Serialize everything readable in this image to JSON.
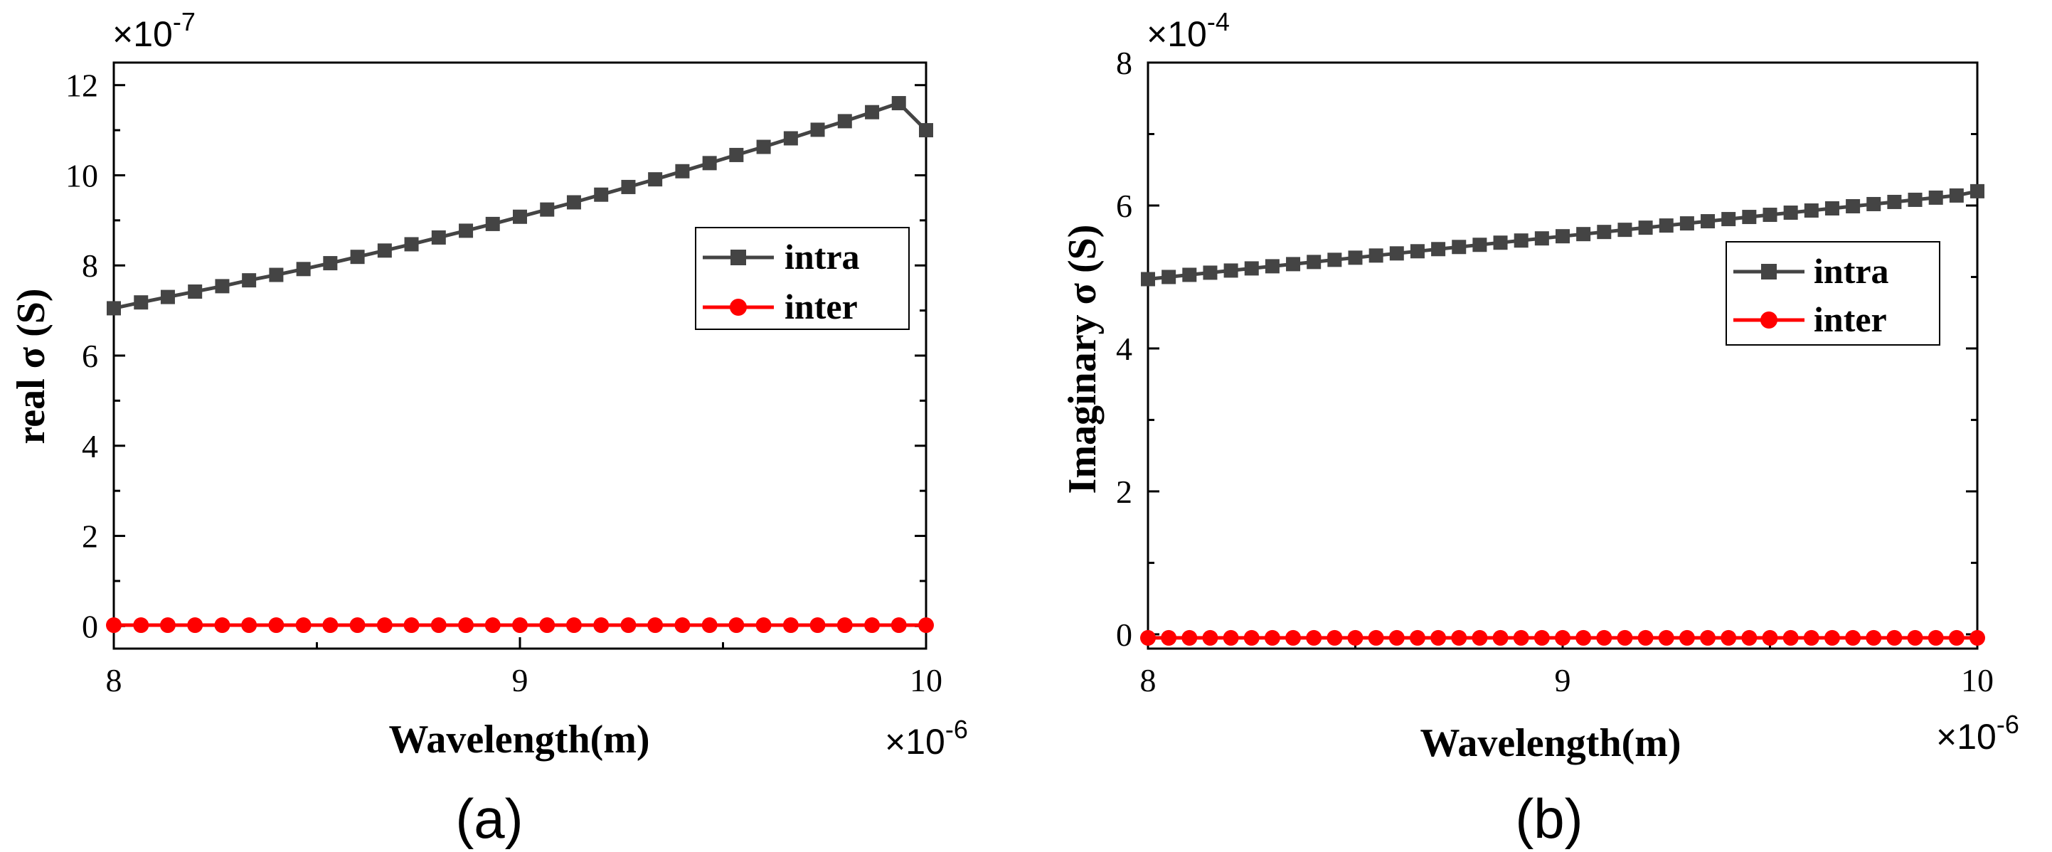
{
  "chart_data": [
    {
      "type": "line",
      "panel_label": "(a)",
      "xlabel": "Wavelength(m)",
      "ylabel": "real σ (S)",
      "x_multiplier": "×10",
      "x_multiplier_exp": "-6",
      "y_multiplier": "×10",
      "y_multiplier_exp": "-7",
      "xlim": [
        8,
        10
      ],
      "ylim": [
        -0.5,
        12.5
      ],
      "xticks": [
        8,
        9,
        10
      ],
      "xtick_labels": [
        "8",
        "9",
        "10"
      ],
      "yticks": [
        0,
        2,
        4,
        6,
        8,
        10,
        12
      ],
      "ytick_labels": [
        "0",
        "2",
        "4",
        "6",
        "8",
        "10",
        "12"
      ],
      "x": [
        8.0,
        8.067,
        8.133,
        8.2,
        8.267,
        8.333,
        8.4,
        8.467,
        8.533,
        8.6,
        8.667,
        8.733,
        8.8,
        8.867,
        8.933,
        9.0,
        9.067,
        9.133,
        9.2,
        9.267,
        9.333,
        9.4,
        9.467,
        9.533,
        9.6,
        9.667,
        9.733,
        9.8,
        9.867,
        9.933,
        10.0
      ],
      "series": [
        {
          "name": "intra",
          "color": "#444444",
          "marker": "square",
          "values": [
            7.05,
            7.18,
            7.3,
            7.42,
            7.54,
            7.67,
            7.79,
            7.92,
            8.05,
            8.19,
            8.33,
            8.47,
            8.62,
            8.77,
            8.92,
            9.08,
            9.24,
            9.4,
            9.57,
            9.74,
            9.91,
            10.09,
            10.27,
            10.45,
            10.63,
            10.82,
            11.01,
            11.2,
            11.4,
            11.6,
            11.0
          ]
        },
        {
          "name": "inter",
          "color": "#ff0000",
          "marker": "circle",
          "values": [
            0.02,
            0.02,
            0.02,
            0.02,
            0.02,
            0.02,
            0.02,
            0.02,
            0.02,
            0.02,
            0.02,
            0.02,
            0.02,
            0.02,
            0.02,
            0.02,
            0.02,
            0.02,
            0.02,
            0.02,
            0.02,
            0.02,
            0.02,
            0.02,
            0.02,
            0.02,
            0.02,
            0.02,
            0.02,
            0.02,
            0.02
          ]
        }
      ]
    },
    {
      "type": "line",
      "panel_label": "(b)",
      "xlabel": "Wavelength(m)",
      "ylabel": "Imaginary σ (S)",
      "x_multiplier": "×10",
      "x_multiplier_exp": "-6",
      "y_multiplier": "×10",
      "y_multiplier_exp": "-4",
      "xlim": [
        8,
        10
      ],
      "ylim": [
        -0.2,
        8.0
      ],
      "xticks": [
        8,
        9,
        10
      ],
      "xtick_labels": [
        "8",
        "9",
        "10"
      ],
      "yticks": [
        0,
        2,
        4,
        6,
        8
      ],
      "ytick_labels": [
        "0",
        "2",
        "4",
        "6",
        "8"
      ],
      "x": [
        8.0,
        8.05,
        8.1,
        8.15,
        8.2,
        8.25,
        8.3,
        8.35,
        8.4,
        8.45,
        8.5,
        8.55,
        8.6,
        8.65,
        8.7,
        8.75,
        8.8,
        8.85,
        8.9,
        8.95,
        9.0,
        9.05,
        9.1,
        9.15,
        9.2,
        9.25,
        9.3,
        9.35,
        9.4,
        9.45,
        9.5,
        9.55,
        9.6,
        9.65,
        9.7,
        9.75,
        9.8,
        9.85,
        9.9,
        9.95,
        10.0
      ],
      "series": [
        {
          "name": "intra",
          "color": "#444444",
          "marker": "square",
          "values": [
            4.97,
            5.0,
            5.03,
            5.06,
            5.09,
            5.12,
            5.15,
            5.18,
            5.21,
            5.24,
            5.27,
            5.3,
            5.33,
            5.36,
            5.39,
            5.42,
            5.45,
            5.48,
            5.51,
            5.54,
            5.57,
            5.6,
            5.63,
            5.66,
            5.69,
            5.72,
            5.75,
            5.78,
            5.81,
            5.84,
            5.87,
            5.9,
            5.93,
            5.96,
            5.99,
            6.02,
            6.05,
            6.08,
            6.11,
            6.14,
            6.2
          ]
        },
        {
          "name": "inter",
          "color": "#ff0000",
          "marker": "circle",
          "values": [
            -0.05,
            -0.05,
            -0.05,
            -0.05,
            -0.05,
            -0.05,
            -0.05,
            -0.05,
            -0.05,
            -0.05,
            -0.05,
            -0.05,
            -0.05,
            -0.05,
            -0.05,
            -0.05,
            -0.05,
            -0.05,
            -0.05,
            -0.05,
            -0.05,
            -0.05,
            -0.05,
            -0.05,
            -0.05,
            -0.05,
            -0.05,
            -0.05,
            -0.05,
            -0.05,
            -0.05,
            -0.05,
            -0.05,
            -0.05,
            -0.05,
            -0.05,
            -0.05,
            -0.05,
            -0.05,
            -0.05,
            -0.05
          ]
        }
      ]
    }
  ]
}
